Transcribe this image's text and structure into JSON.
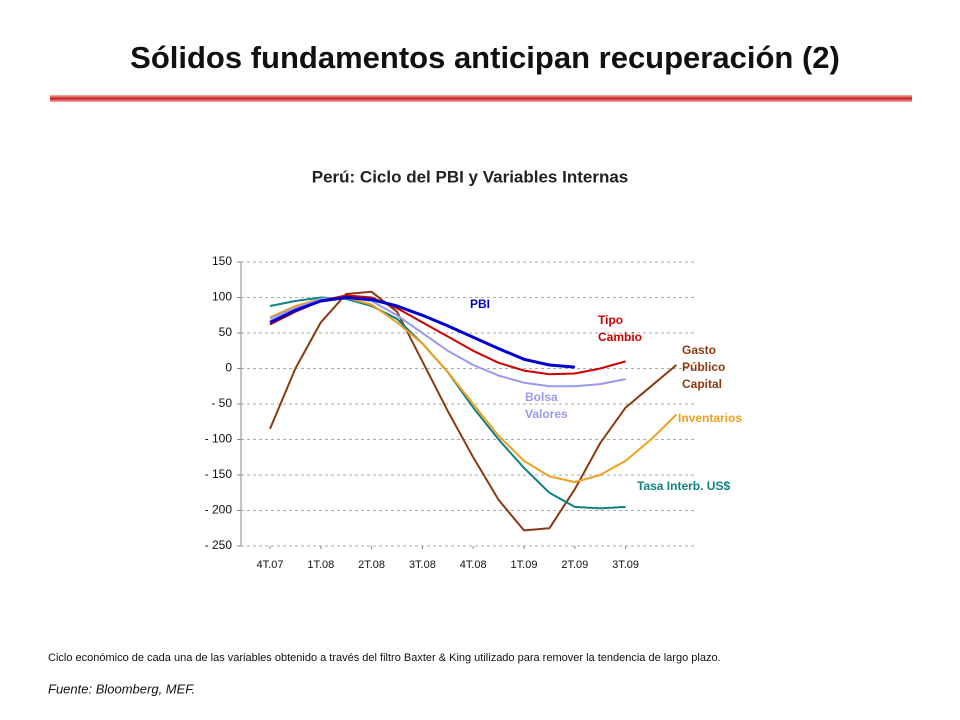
{
  "page_title": "Sólidos fundamentos anticipan recuperación (2)",
  "chart_data": {
    "type": "line",
    "title": "Perú: Ciclo del PBI y Variables Internas",
    "x": [
      0,
      0.5,
      1,
      1.5,
      2,
      2.5,
      3,
      3.5,
      4,
      4.5,
      5,
      5.5,
      6,
      6.5,
      7,
      7.5,
      8
    ],
    "xlim": [
      -0.45,
      8.4
    ],
    "xticks": [
      {
        "value": 0,
        "label": "4T.07"
      },
      {
        "value": 1,
        "label": "1T.08"
      },
      {
        "value": 2,
        "label": "2T.08"
      },
      {
        "value": 3,
        "label": "3T.08"
      },
      {
        "value": 4,
        "label": "4T.08"
      },
      {
        "value": 5,
        "label": "1T.09"
      },
      {
        "value": 6,
        "label": "2T.09"
      },
      {
        "value": 7,
        "label": "3T.09"
      }
    ],
    "ylim": [
      -250,
      150
    ],
    "yticks": [
      150,
      100,
      50,
      0,
      {
        "value": -50,
        "label": "- 50"
      },
      {
        "value": -100,
        "label": "- 100"
      },
      {
        "value": -150,
        "label": "- 150"
      },
      {
        "value": -200,
        "label": "- 200"
      },
      {
        "value": -250,
        "label": "- 250"
      }
    ],
    "grid": true,
    "series": [
      {
        "name": "Gasto Público Capital",
        "color": "#8b3a0f",
        "values": [
          -85,
          0,
          65,
          105,
          108,
          80,
          10,
          -60,
          -125,
          -185,
          -228,
          -225,
          -170,
          -105,
          -55,
          -25,
          5
        ]
      },
      {
        "name": "Tasa Interb. US$",
        "color": "#108080",
        "values": [
          88,
          95,
          100,
          98,
          88,
          70,
          35,
          -5,
          -55,
          -100,
          -140,
          -175,
          -195,
          -197,
          -195,
          null,
          null
        ]
      },
      {
        "name": "Inventarios",
        "color": "#f0a020",
        "values": [
          72,
          88,
          98,
          100,
          90,
          65,
          35,
          -5,
          -50,
          -95,
          -130,
          -152,
          -160,
          -150,
          -130,
          -100,
          -65
        ]
      },
      {
        "name": "Bolsa Valores",
        "color": "#9999ee",
        "values": [
          70,
          85,
          98,
          100,
          95,
          75,
          50,
          25,
          5,
          -10,
          -20,
          -25,
          -25,
          -22,
          -15,
          null,
          null
        ]
      },
      {
        "name": "Tipo Cambio",
        "color": "#cc0000",
        "values": [
          62,
          80,
          95,
          103,
          100,
          85,
          65,
          45,
          25,
          8,
          -3,
          -8,
          -7,
          0,
          10,
          null,
          null
        ]
      },
      {
        "name": "PBI",
        "color": "#0000cc",
        "values": [
          65,
          82,
          95,
          100,
          97,
          88,
          75,
          60,
          44,
          28,
          13,
          5,
          2,
          null,
          null,
          null,
          null
        ]
      }
    ]
  },
  "footnote": "Ciclo económico de cada una de las variables obtenido a través del filtro Baxter & King utilizado para remover la tendencia de largo plazo.",
  "source": "Fuente: Bloomberg, MEF."
}
